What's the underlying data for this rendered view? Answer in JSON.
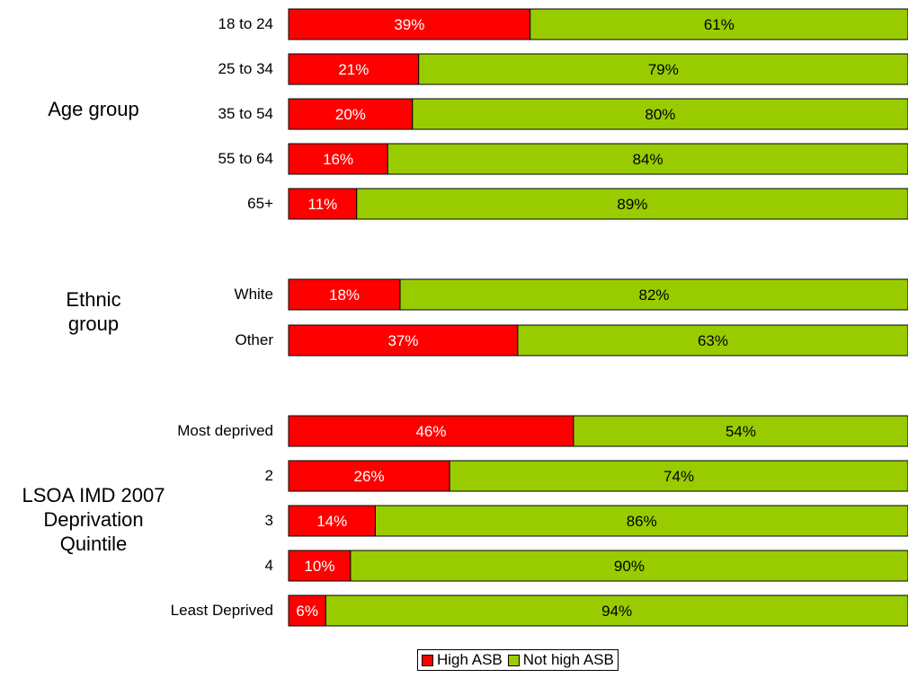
{
  "chart_data": {
    "type": "bar",
    "orientation": "horizontal",
    "stacked": true,
    "percent_stacked": true,
    "xlim": [
      0,
      100
    ],
    "grid": false,
    "legend_position": "bottom",
    "colors": {
      "High ASB": "#ff0000",
      "Not high ASB": "#99cc00"
    },
    "groups": [
      {
        "name": "Age group",
        "name_lines": [
          "Age group"
        ],
        "categories": [
          "18 to 24",
          "25 to 34",
          "35 to 54",
          "55 to 64",
          "65+"
        ],
        "high_labels": [
          "39%",
          "21%",
          "20%",
          "16%",
          "11%"
        ],
        "not_high_labels": [
          "61%",
          "79%",
          "80%",
          "84%",
          "89%"
        ]
      },
      {
        "name": "Ethnic group",
        "name_lines": [
          "Ethnic",
          "group"
        ],
        "categories": [
          "White",
          "Other"
        ],
        "high_labels": [
          "18%",
          "37%"
        ],
        "not_high_labels": [
          "82%",
          "63%"
        ]
      },
      {
        "name": "LSOA IMD 2007 Deprivation Quintile",
        "name_lines": [
          "LSOA IMD 2007",
          "Deprivation",
          "Quintile"
        ],
        "categories": [
          "Most deprived",
          "2",
          "3",
          "4",
          "Least Deprived"
        ],
        "high_labels": [
          "46%",
          "26%",
          "14%",
          "10%",
          "6%"
        ],
        "not_high_labels": [
          "54%",
          "74%",
          "86%",
          "90%",
          "94%"
        ]
      }
    ],
    "series": [
      {
        "name": "High ASB",
        "values": [
          39,
          21,
          20,
          16,
          11,
          18,
          37,
          46,
          26,
          14,
          10,
          6
        ]
      },
      {
        "name": "Not high ASB",
        "values": [
          61,
          79,
          80,
          84,
          89,
          82,
          63,
          54,
          74,
          86,
          90,
          94
        ]
      }
    ]
  },
  "legend": {
    "items": [
      {
        "label": "High ASB",
        "color": "#ff0000"
      },
      {
        "label": "Not high ASB",
        "color": "#99cc00"
      }
    ]
  }
}
